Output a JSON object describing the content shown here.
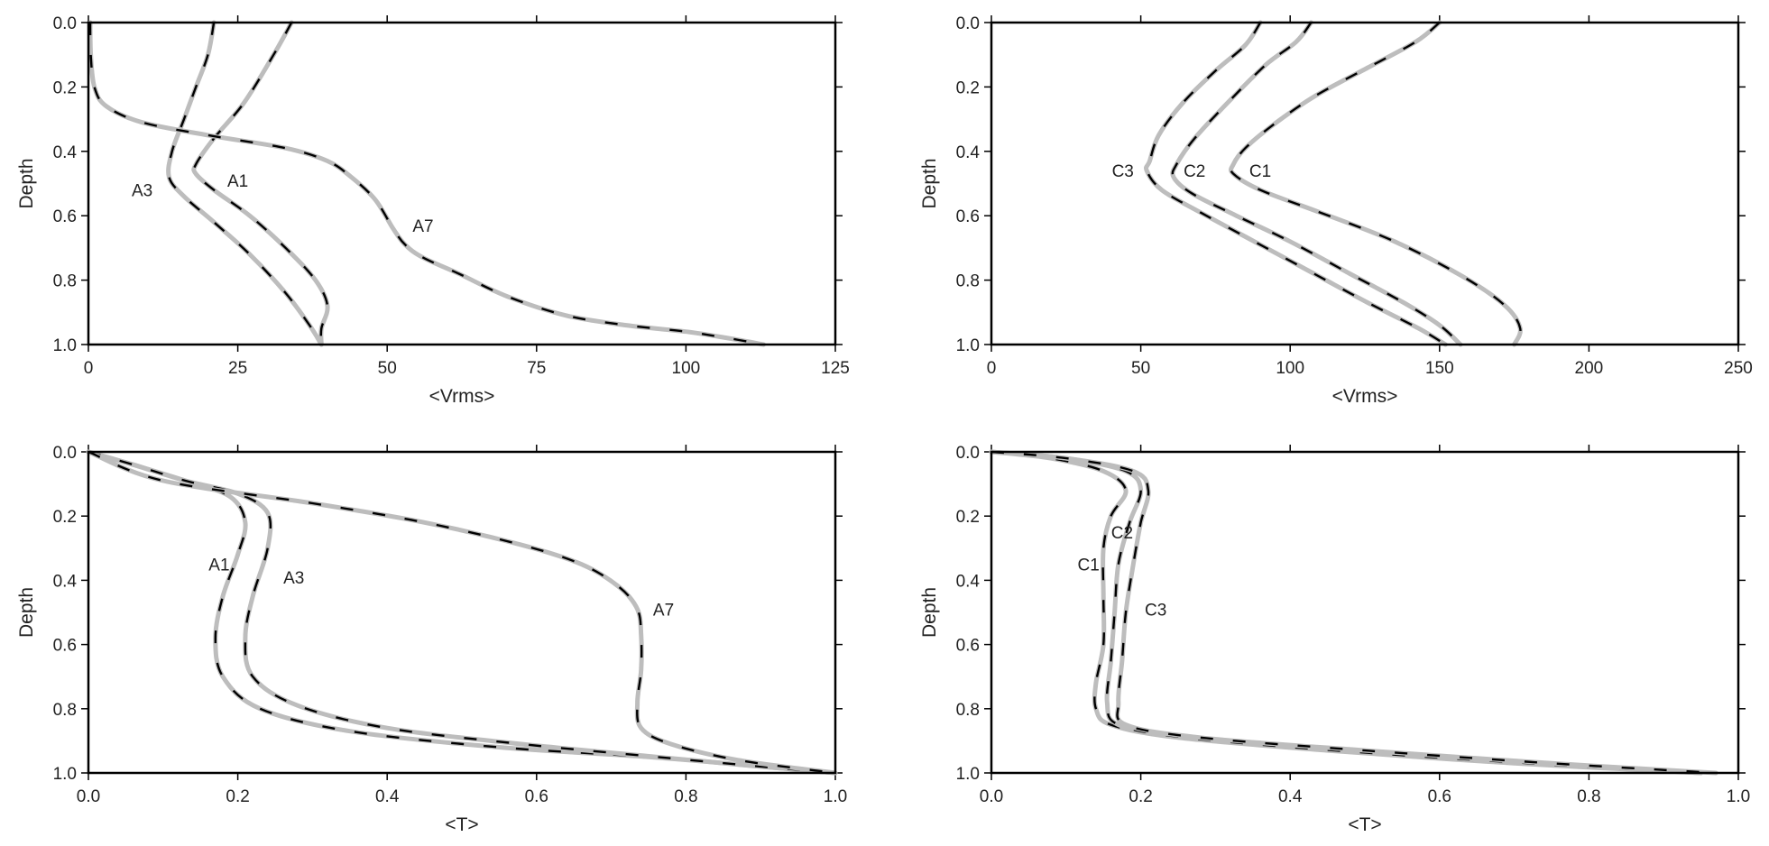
{
  "chart_data": [
    {
      "type": "line",
      "xlabel": "<Vrms>",
      "ylabel": "Depth",
      "xlim": [
        0,
        125
      ],
      "ylim": [
        0.0,
        1.0
      ],
      "y_inverted": true,
      "xticks": [
        "0",
        "25",
        "50",
        "75",
        "100",
        "125"
      ],
      "yticks": [
        "0.0",
        "0.2",
        "0.4",
        "0.6",
        "0.8",
        "1.0"
      ],
      "line_style": "gray solid with black dashes",
      "series": [
        {
          "name": "A1",
          "label_at": [
            25,
            0.49
          ],
          "points": [
            [
              34,
              0.0
            ],
            [
              31,
              0.1
            ],
            [
              26,
              0.25
            ],
            [
              21,
              0.36
            ],
            [
              18,
              0.44
            ],
            [
              18,
              0.47
            ],
            [
              21,
              0.52
            ],
            [
              27,
              0.6
            ],
            [
              33,
              0.7
            ],
            [
              38,
              0.8
            ],
            [
              40,
              0.88
            ],
            [
              39,
              0.95
            ],
            [
              39,
              1.0
            ]
          ]
        },
        {
          "name": "A3",
          "label_at": [
            9,
            0.52
          ],
          "points": [
            [
              21,
              0.0
            ],
            [
              20,
              0.1
            ],
            [
              18,
              0.2
            ],
            [
              16,
              0.3
            ],
            [
              14,
              0.4
            ],
            [
              13.5,
              0.48
            ],
            [
              16,
              0.54
            ],
            [
              21,
              0.62
            ],
            [
              27,
              0.72
            ],
            [
              33,
              0.84
            ],
            [
              37,
              0.94
            ],
            [
              39,
              1.0
            ]
          ]
        },
        {
          "name": "A7",
          "label_at": [
            56,
            0.63
          ],
          "points": [
            [
              0.3,
              0.0
            ],
            [
              0.4,
              0.1
            ],
            [
              1,
              0.2
            ],
            [
              3,
              0.26
            ],
            [
              9,
              0.31
            ],
            [
              20,
              0.35
            ],
            [
              33,
              0.39
            ],
            [
              40,
              0.43
            ],
            [
              44,
              0.48
            ],
            [
              48,
              0.55
            ],
            [
              51,
              0.64
            ],
            [
              53,
              0.69
            ],
            [
              56,
              0.73
            ],
            [
              62,
              0.78
            ],
            [
              70,
              0.85
            ],
            [
              80,
              0.91
            ],
            [
              90,
              0.94
            ],
            [
              100,
              0.96
            ],
            [
              107,
              0.98
            ],
            [
              113,
              1.0
            ]
          ]
        }
      ]
    },
    {
      "type": "line",
      "xlabel": "<Vrms>",
      "ylabel": "Depth",
      "xlim": [
        0,
        250
      ],
      "ylim": [
        0.0,
        1.0
      ],
      "y_inverted": true,
      "xticks": [
        "0",
        "50",
        "100",
        "150",
        "200",
        "250"
      ],
      "yticks": [
        "0.0",
        "0.2",
        "0.4",
        "0.6",
        "0.8",
        "1.0"
      ],
      "line_style": "gray solid with black dashes",
      "series": [
        {
          "name": "C1",
          "label_at": [
            90,
            0.46
          ],
          "points": [
            [
              150,
              0.0
            ],
            [
              142,
              0.06
            ],
            [
              126,
              0.14
            ],
            [
              108,
              0.23
            ],
            [
              94,
              0.32
            ],
            [
              85,
              0.39
            ],
            [
              81,
              0.44
            ],
            [
              81,
              0.47
            ],
            [
              90,
              0.52
            ],
            [
              110,
              0.59
            ],
            [
              135,
              0.68
            ],
            [
              158,
              0.79
            ],
            [
              172,
              0.88
            ],
            [
              177,
              0.95
            ],
            [
              175,
              1.0
            ]
          ]
        },
        {
          "name": "C2",
          "label_at": [
            68,
            0.46
          ],
          "points": [
            [
              107,
              0.0
            ],
            [
              102,
              0.06
            ],
            [
              92,
              0.13
            ],
            [
              80,
              0.24
            ],
            [
              68,
              0.36
            ],
            [
              62,
              0.44
            ],
            [
              61,
              0.48
            ],
            [
              67,
              0.53
            ],
            [
              82,
              0.6
            ],
            [
              100,
              0.68
            ],
            [
              120,
              0.78
            ],
            [
              138,
              0.87
            ],
            [
              150,
              0.94
            ],
            [
              157,
              1.0
            ]
          ]
        },
        {
          "name": "C3",
          "label_at": [
            44,
            0.46
          ],
          "points": [
            [
              90,
              0.0
            ],
            [
              85,
              0.07
            ],
            [
              75,
              0.15
            ],
            [
              64,
              0.25
            ],
            [
              56,
              0.35
            ],
            [
              53,
              0.43
            ],
            [
              52,
              0.46
            ],
            [
              57,
              0.52
            ],
            [
              70,
              0.59
            ],
            [
              88,
              0.68
            ],
            [
              108,
              0.78
            ],
            [
              126,
              0.87
            ],
            [
              143,
              0.95
            ],
            [
              152,
              1.0
            ]
          ]
        }
      ]
    },
    {
      "type": "line",
      "xlabel": "<T>",
      "ylabel": "Depth",
      "xlim": [
        0.0,
        1.0
      ],
      "ylim": [
        0.0,
        1.0
      ],
      "y_inverted": true,
      "xticks": [
        "0.0",
        "0.2",
        "0.4",
        "0.6",
        "0.8",
        "1.0"
      ],
      "yticks": [
        "0.0",
        "0.2",
        "0.4",
        "0.6",
        "0.8",
        "1.0"
      ],
      "line_style": "gray solid with black dashes",
      "series": [
        {
          "name": "A1",
          "label_at": [
            0.175,
            0.35
          ],
          "points": [
            [
              0.0,
              0.0
            ],
            [
              0.06,
              0.04
            ],
            [
              0.13,
              0.09
            ],
            [
              0.19,
              0.14
            ],
            [
              0.21,
              0.22
            ],
            [
              0.2,
              0.32
            ],
            [
              0.18,
              0.45
            ],
            [
              0.17,
              0.58
            ],
            [
              0.18,
              0.7
            ],
            [
              0.23,
              0.8
            ],
            [
              0.35,
              0.87
            ],
            [
              0.55,
              0.92
            ],
            [
              0.75,
              0.95
            ],
            [
              0.9,
              0.98
            ],
            [
              1.0,
              1.0
            ]
          ]
        },
        {
          "name": "A3",
          "label_at": [
            0.275,
            0.39
          ],
          "points": [
            [
              0.0,
              0.0
            ],
            [
              0.06,
              0.04
            ],
            [
              0.13,
              0.09
            ],
            [
              0.2,
              0.13
            ],
            [
              0.24,
              0.19
            ],
            [
              0.24,
              0.3
            ],
            [
              0.22,
              0.45
            ],
            [
              0.21,
              0.58
            ],
            [
              0.22,
              0.7
            ],
            [
              0.28,
              0.79
            ],
            [
              0.4,
              0.86
            ],
            [
              0.58,
              0.91
            ],
            [
              0.76,
              0.95
            ],
            [
              0.9,
              0.98
            ],
            [
              1.0,
              1.0
            ]
          ]
        },
        {
          "name": "A7",
          "label_at": [
            0.77,
            0.49
          ],
          "points": [
            [
              0.0,
              0.0
            ],
            [
              0.1,
              0.09
            ],
            [
              0.3,
              0.16
            ],
            [
              0.45,
              0.22
            ],
            [
              0.58,
              0.29
            ],
            [
              0.66,
              0.35
            ],
            [
              0.71,
              0.42
            ],
            [
              0.735,
              0.49
            ],
            [
              0.74,
              0.57
            ],
            [
              0.74,
              0.68
            ],
            [
              0.735,
              0.78
            ],
            [
              0.74,
              0.86
            ],
            [
              0.78,
              0.91
            ],
            [
              0.87,
              0.96
            ],
            [
              1.0,
              1.0
            ]
          ]
        }
      ]
    },
    {
      "type": "line",
      "xlabel": "<T>",
      "ylabel": "Depth",
      "xlim": [
        0.0,
        1.0
      ],
      "ylim": [
        0.0,
        1.0
      ],
      "y_inverted": true,
      "xticks": [
        "0.0",
        "0.2",
        "0.4",
        "0.6",
        "0.8",
        "1.0"
      ],
      "yticks": [
        "0.0",
        "0.2",
        "0.4",
        "0.6",
        "0.8",
        "1.0"
      ],
      "line_style": "gray solid with black dashes",
      "series": [
        {
          "name": "C1",
          "label_at": [
            0.13,
            0.35
          ],
          "points": [
            [
              0.0,
              0.0
            ],
            [
              0.08,
              0.02
            ],
            [
              0.15,
              0.06
            ],
            [
              0.18,
              0.12
            ],
            [
              0.16,
              0.2
            ],
            [
              0.15,
              0.3
            ],
            [
              0.15,
              0.45
            ],
            [
              0.15,
              0.6
            ],
            [
              0.14,
              0.72
            ],
            [
              0.14,
              0.8
            ],
            [
              0.16,
              0.85
            ],
            [
              0.25,
              0.89
            ],
            [
              0.45,
              0.93
            ],
            [
              0.7,
              0.97
            ],
            [
              0.95,
              1.0
            ]
          ]
        },
        {
          "name": "C2",
          "label_at": [
            0.175,
            0.25
          ],
          "points": [
            [
              0.0,
              0.0
            ],
            [
              0.1,
              0.02
            ],
            [
              0.18,
              0.06
            ],
            [
              0.2,
              0.12
            ],
            [
              0.185,
              0.22
            ],
            [
              0.17,
              0.35
            ],
            [
              0.165,
              0.5
            ],
            [
              0.16,
              0.65
            ],
            [
              0.155,
              0.78
            ],
            [
              0.17,
              0.85
            ],
            [
              0.26,
              0.89
            ],
            [
              0.46,
              0.93
            ],
            [
              0.72,
              0.97
            ],
            [
              0.95,
              1.0
            ]
          ]
        },
        {
          "name": "C3",
          "label_at": [
            0.22,
            0.49
          ],
          "points": [
            [
              0.0,
              0.0
            ],
            [
              0.1,
              0.02
            ],
            [
              0.19,
              0.06
            ],
            [
              0.21,
              0.12
            ],
            [
              0.2,
              0.22
            ],
            [
              0.19,
              0.35
            ],
            [
              0.18,
              0.5
            ],
            [
              0.175,
              0.65
            ],
            [
              0.17,
              0.78
            ],
            [
              0.18,
              0.85
            ],
            [
              0.28,
              0.89
            ],
            [
              0.5,
              0.93
            ],
            [
              0.75,
              0.97
            ],
            [
              0.97,
              1.0
            ]
          ]
        }
      ]
    }
  ]
}
